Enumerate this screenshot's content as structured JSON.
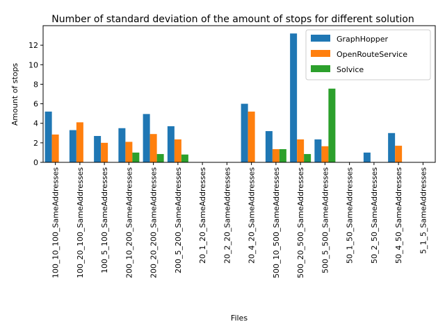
{
  "chart_data": {
    "type": "bar",
    "title": "Number of standard deviation of the amount of stops for different solution",
    "xlabel": "Files",
    "ylabel": "Amount of stops",
    "ylim": [
      0,
      14
    ],
    "yticks": [
      0,
      2,
      4,
      6,
      8,
      10,
      12
    ],
    "grid": false,
    "legend_position": "top-right",
    "categories": [
      "100_10_100_SameAddresses",
      "100_20_100_SameAddresses",
      "100_5_100_SameAddresses",
      "200_10_200_SameAddresses",
      "200_20_200_SameAddresses",
      "200_5_200_SameAddresses",
      "20_1_20_SameAddresses",
      "20_2_20_SameAddresses",
      "20_4_20_SameAddresses",
      "500_10_500_SameAddresses",
      "500_20_500_SameAddresses",
      "500_5_500_SameAddresses",
      "50_1_50_SameAddresses",
      "50_2_50_SameAddresses",
      "50_4_50_SameAddresses",
      "5_1_5_SameAddresses"
    ],
    "series": [
      {
        "name": "GraphHopper",
        "color": "#1f77b4",
        "values": [
          5.2,
          3.3,
          2.7,
          3.5,
          4.95,
          3.7,
          0,
          0,
          6.0,
          3.2,
          13.2,
          2.35,
          0,
          1.0,
          3.0,
          0
        ]
      },
      {
        "name": "OpenRouteService",
        "color": "#ff7f0e",
        "values": [
          2.85,
          4.1,
          2.0,
          2.1,
          2.9,
          2.35,
          0,
          0,
          5.2,
          1.35,
          2.35,
          1.65,
          0,
          0,
          1.7,
          0
        ]
      },
      {
        "name": "Solvice",
        "color": "#2ca02c",
        "values": [
          0,
          0,
          0,
          1.0,
          0.85,
          0.8,
          0,
          0,
          0,
          1.35,
          0.85,
          7.55,
          0,
          0,
          0,
          0
        ]
      }
    ]
  }
}
